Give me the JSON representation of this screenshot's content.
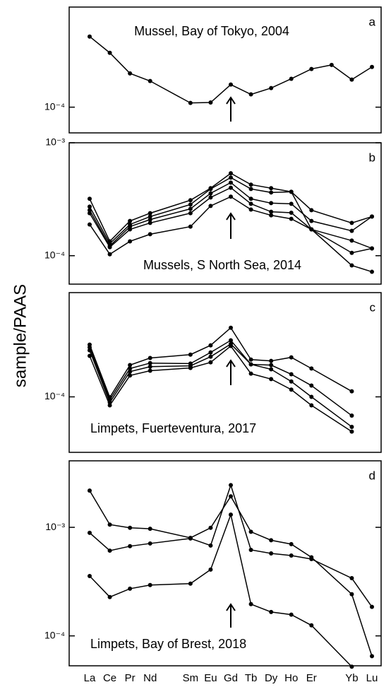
{
  "ylabel": "sample/PAAS",
  "chart_data": [
    {
      "type": "line",
      "title": "Mussel, Bay of Tokyo, 2004",
      "panel": "a",
      "log_scale": true,
      "ylim": [
        5.9e-05,
        0.00078
      ],
      "yticks": [
        {
          "value": 0.0001,
          "label": "10⁻⁴"
        }
      ],
      "series": [
        {
          "color": "#000000",
          "values": [
            0.000426,
            0.000305,
            0.0002,
            0.000171,
            null,
            0.000109,
            0.00011,
            0.000159,
            0.00013,
            0.000148,
            0.000179,
            0.000219,
            0.000238,
            0.000176,
            0.000228
          ]
        }
      ]
    },
    {
      "type": "line",
      "title": "Mussels, S North Sea, 2014",
      "panel": "b",
      "log_scale": true,
      "ylim": [
        5.6e-05,
        0.001
      ],
      "yticks": [
        {
          "value": 0.001,
          "label": "10⁻³"
        },
        {
          "value": 0.0001,
          "label": "10⁻⁴"
        }
      ],
      "series": [
        {
          "color": "#000000",
          "values": [
            0.000319,
            0.000134,
            0.000203,
            0.000238,
            null,
            0.00031,
            0.000396,
            0.000537,
            0.000426,
            0.000396,
            0.000368,
            0.000253,
            null,
            0.000195,
            0.000222
          ]
        },
        {
          "color": "#000000",
          "values": [
            0.000272,
            0.000128,
            0.000189,
            0.000222,
            null,
            0.000284,
            0.00039,
            0.000492,
            0.00039,
            0.000363,
            0.000368,
            0.000171,
            null,
            0.000136,
            0.000116
          ]
        },
        {
          "color": "#000000",
          "values": [
            0.000253,
            0.000122,
            0.000181,
            0.000209,
            null,
            0.00026,
            0.000357,
            0.000444,
            0.000319,
            0.000292,
            0.000288,
            0.000203,
            null,
            0.000166,
            0.000222
          ]
        },
        {
          "color": "#000000",
          "values": [
            0.000238,
            0.000119,
            0.000171,
            0.000195,
            null,
            0.000238,
            0.000328,
            0.0004,
            0.000288,
            0.000245,
            0.00024,
            0.000171,
            null,
            0.000106,
            0.000116
          ]
        },
        {
          "color": "#000000",
          "values": [
            0.000189,
            0.000103,
            0.000134,
            0.000155,
            null,
            0.000181,
            0.000276,
            0.000333,
            0.000256,
            0.000228,
            0.000212,
            0.000171,
            null,
            8.2e-05,
            7.2e-05
          ]
        }
      ]
    },
    {
      "type": "line",
      "title": "Limpets, Fuerteventura, 2017",
      "panel": "c",
      "log_scale": true,
      "ylim": [
        3.2e-05,
        0.00085
      ],
      "yticks": [
        {
          "value": 0.0001,
          "label": "10⁻⁴"
        }
      ],
      "series": [
        {
          "color": "#000000",
          "values": [
            0.000292,
            9.9e-05,
            0.000192,
            0.000222,
            null,
            0.000238,
            0.000288,
            0.000413,
            0.000215,
            0.000209,
            0.000225,
            0.000179,
            null,
            0.000112,
            null
          ]
        },
        {
          "color": "#000000",
          "values": [
            0.000276,
            9.4e-05,
            0.000179,
            0.0002,
            null,
            0.000198,
            0.000249,
            0.000319,
            0.000195,
            0.000192,
            0.000159,
            0.000126,
            null,
            6.8e-05,
            null
          ]
        },
        {
          "color": "#000000",
          "values": [
            0.00026,
            8.9e-05,
            0.000168,
            0.000186,
            null,
            0.000189,
            0.000228,
            0.000296,
            0.000195,
            0.000176,
            0.000137,
            0.0001,
            null,
            5.4e-05,
            null
          ]
        },
        {
          "color": "#000000",
          "values": [
            0.000232,
            8.4e-05,
            0.000155,
            0.000171,
            null,
            0.000181,
            0.000203,
            0.000284,
            0.000161,
            0.000144,
            0.000116,
            8.4e-05,
            null,
            4.9e-05,
            null
          ]
        }
      ]
    },
    {
      "type": "line",
      "title": "Limpets, Bay of Brest, 2018",
      "panel": "d",
      "log_scale": true,
      "categories": [
        "La",
        "Ce",
        "Pr",
        "Nd",
        null,
        "Sm",
        "Eu",
        "Gd",
        "Tb",
        "Dy",
        "Ho",
        "Er",
        null,
        "Yb",
        "Lu"
      ],
      "ylim": [
        5.3e-05,
        0.0041
      ],
      "yticks": [
        {
          "value": 0.001,
          "label": "10⁻³"
        },
        {
          "value": 0.0001,
          "label": "10⁻⁴"
        }
      ],
      "series": [
        {
          "color": "#000000",
          "values": [
            0.00218,
            0.00106,
            0.00099,
            0.00097,
            null,
            0.0008,
            0.00099,
            0.00193,
            0.00091,
            0.00076,
            0.0007,
            0.00053,
            null,
            0.000242,
            6.5e-05
          ]
        },
        {
          "color": "#000000",
          "values": [
            0.00089,
            0.00061,
            0.00067,
            0.00071,
            null,
            0.00079,
            0.00068,
            0.00245,
            0.00062,
            0.000575,
            0.00055,
            0.00051,
            null,
            0.00034,
            0.000185
          ]
        },
        {
          "color": "#000000",
          "values": [
            0.000356,
            0.000228,
            0.000272,
            0.000294,
            null,
            0.000303,
            0.000408,
            0.00131,
            0.000196,
            0.000166,
            0.000157,
            0.000125,
            null,
            5.2e-05,
            null
          ]
        }
      ]
    }
  ]
}
